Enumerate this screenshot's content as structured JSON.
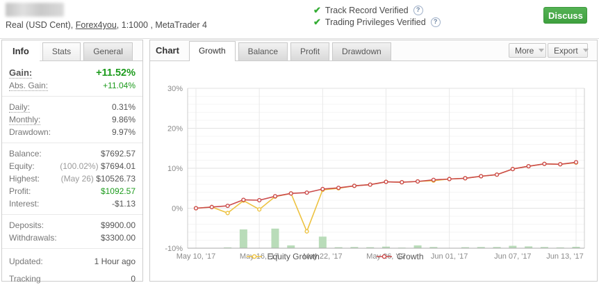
{
  "header": {
    "account_line": {
      "prefix": "Real (USD Cent), ",
      "broker": "Forex4you",
      "suffix": ", 1:1000 , MetaTrader 4"
    },
    "badges": [
      {
        "text": "Track Record Verified"
      },
      {
        "text": "Trading Privileges Verified"
      }
    ],
    "discuss_label": "Discuss",
    "icons": {
      "check": "✔",
      "question": "?"
    }
  },
  "sidebar": {
    "tabs": [
      {
        "label": "Info",
        "active": true
      },
      {
        "label": "Stats",
        "active": false
      },
      {
        "label": "General",
        "active": false
      }
    ],
    "stat_groups": [
      {
        "rows": [
          {
            "label": "Gain:",
            "value": "+11.52%",
            "style": "gain",
            "underline": true
          },
          {
            "label": "Abs. Gain:",
            "value": "+11.04%",
            "style": "green",
            "underline": true
          }
        ]
      },
      {
        "rows": [
          {
            "label": "Daily:",
            "value": "0.31%",
            "underline": true
          },
          {
            "label": "Monthly:",
            "value": "9.86%",
            "underline": true
          },
          {
            "label": "Drawdown:",
            "value": "9.97%"
          }
        ]
      },
      {
        "rows": [
          {
            "label": "Balance:",
            "value": "$7692.57"
          },
          {
            "label": "Equity:",
            "note": "(100.02%)",
            "value": "$7694.01"
          },
          {
            "label": "Highest:",
            "note": "(May 26)",
            "value": "$10526.73"
          },
          {
            "label": "Profit:",
            "value": "$1092.57",
            "style": "green"
          },
          {
            "label": "Interest:",
            "value": "-$1.13"
          }
        ]
      },
      {
        "rows": [
          {
            "label": "Deposits:",
            "value": "$9900.00"
          },
          {
            "label": "Withdrawals:",
            "value": "$3300.00"
          }
        ]
      },
      {
        "rows": [
          {
            "label": "Updated:",
            "value": "1 Hour ago"
          },
          {
            "label": "Tracking",
            "value": "0"
          }
        ]
      }
    ]
  },
  "chart_panel": {
    "title": "Chart",
    "tabs": [
      {
        "label": "Growth",
        "active": true
      },
      {
        "label": "Balance",
        "active": false
      },
      {
        "label": "Profit",
        "active": false
      },
      {
        "label": "Drawdown",
        "active": false
      }
    ],
    "more_label": "More",
    "export_label": "Export"
  },
  "chart_data": {
    "type": "line",
    "x": [
      "May 10",
      "May 11",
      "May 12",
      "May 15",
      "May 16",
      "May 17",
      "May 18",
      "May 19",
      "May 22",
      "May 23",
      "May 24",
      "May 25",
      "May 26",
      "May 29",
      "May 30",
      "May 31",
      "Jun 01",
      "Jun 02",
      "Jun 05",
      "Jun 06",
      "Jun 07",
      "Jun 08",
      "Jun 09",
      "Jun 12",
      "Jun 13"
    ],
    "tick_indices": [
      0,
      4,
      8,
      12,
      16,
      20,
      24
    ],
    "tick_labels": [
      "May 10, '17",
      "May 16, '17",
      "May 22, '17",
      "May 26, '17",
      "Jun 01, '17",
      "Jun 07, '17",
      "Jun 13, '17"
    ],
    "ylim": [
      -10,
      30
    ],
    "yticks": [
      {
        "v": 30,
        "label": "30%"
      },
      {
        "v": 20,
        "label": "20%"
      },
      {
        "v": 10,
        "label": "10%"
      },
      {
        "v": 0,
        "label": "0%"
      },
      {
        "v": -10,
        "label": "-10%"
      }
    ],
    "grid": {
      "on": true,
      "minor_step_pct": 2
    },
    "series": [
      {
        "name": "Equity Growth",
        "color": "#edc240",
        "values": [
          0,
          0.3,
          -1.2,
          1.9,
          -0.3,
          2.9,
          3.7,
          -5.8,
          4.6,
          5.0,
          5.6,
          5.9,
          6.6,
          6.5,
          6.7,
          6.9,
          7.3,
          7.5,
          8.0,
          8.4,
          9.8,
          10.5,
          11.1,
          11.0,
          11.4
        ]
      },
      {
        "name": "Growth",
        "color": "#cb4b4b",
        "values": [
          0,
          0.3,
          0.6,
          2.1,
          2.0,
          3.0,
          3.7,
          3.9,
          4.8,
          5.1,
          5.6,
          5.9,
          6.6,
          6.5,
          6.7,
          7.1,
          7.3,
          7.5,
          8.0,
          8.4,
          9.8,
          10.5,
          11.1,
          11.0,
          11.5
        ]
      }
    ],
    "bars": {
      "name": "daily-activity-bars",
      "color": "#b9dcb9",
      "baseline": -10,
      "heights": [
        0,
        0,
        0.2,
        4.7,
        0,
        4.9,
        0.7,
        0,
        2.9,
        0.25,
        0.3,
        0.25,
        0.4,
        0.15,
        0.7,
        0.3,
        0,
        0.25,
        0.3,
        0.3,
        0.6,
        0.45,
        0.3,
        0.2,
        0.35
      ]
    },
    "legend_position": "bottom"
  },
  "colors": {
    "gain_green": "#1d9b1d",
    "equity_line": "#edc240",
    "growth_line": "#cb4b4b",
    "bars_green": "#b9dcb9",
    "discuss_green": "#47a447",
    "verified_check": "#35ad35"
  }
}
